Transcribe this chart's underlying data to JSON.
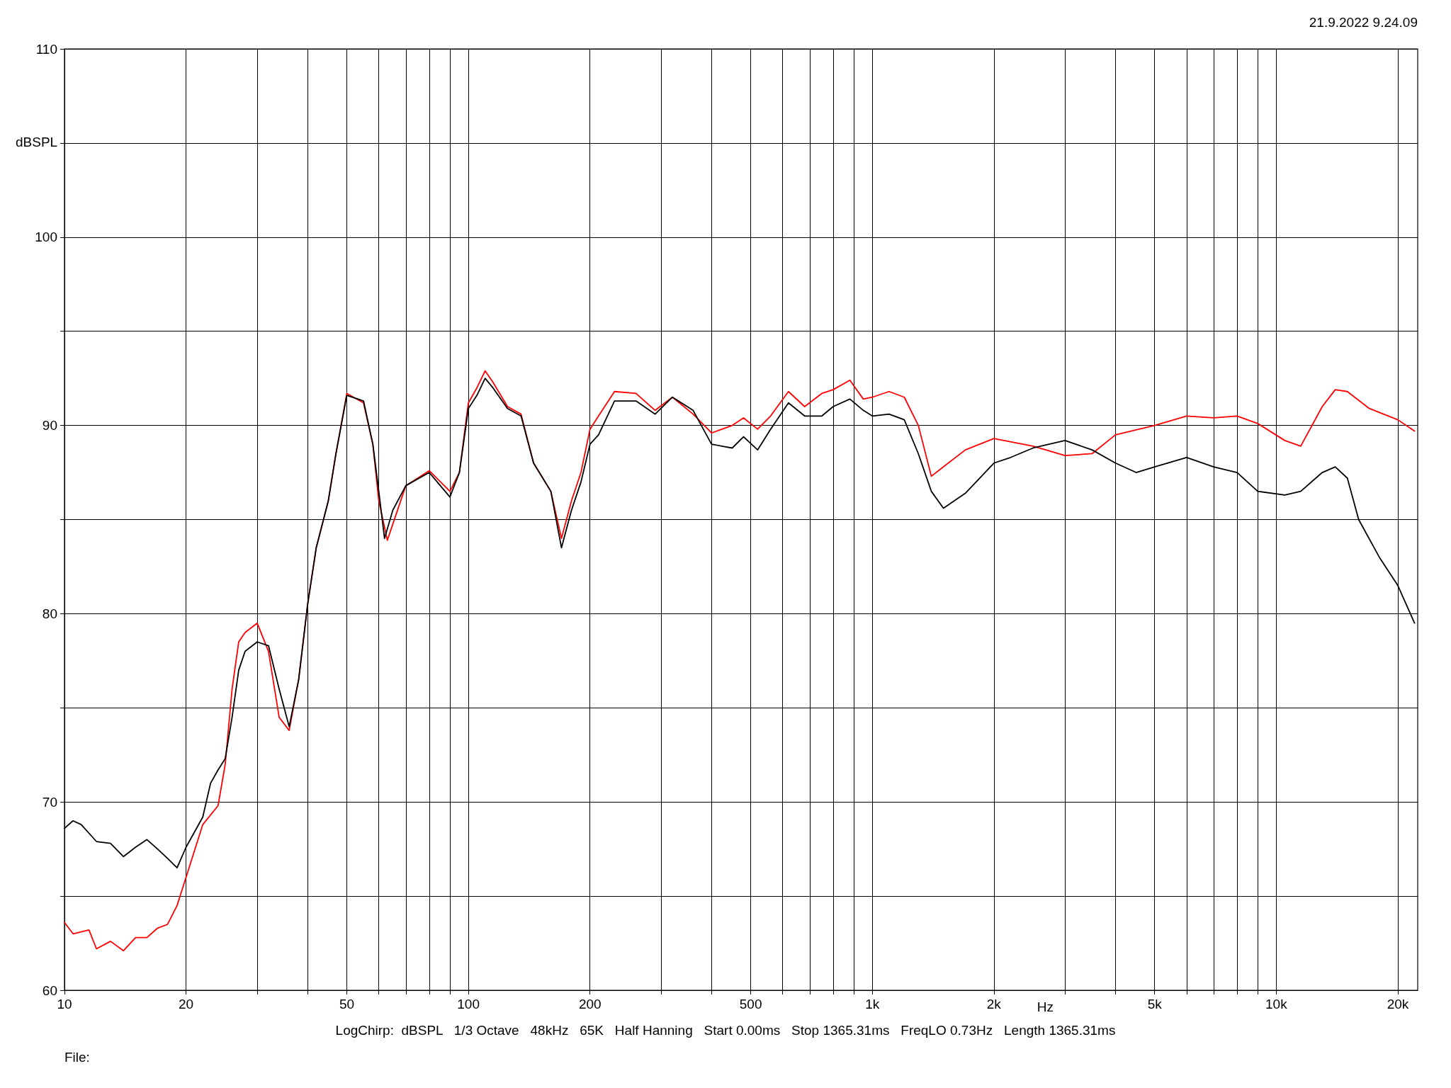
{
  "chart_data": {
    "type": "line",
    "xlabel": "Hz",
    "ylabel": "dBSPL",
    "annotations": [
      "21.9.2022 9.24.09",
      "LogChirp:  dBSPL   1/3 Octave   48kHz   65K   Half Hanning   Start 0.00ms   Stop 1365.31ms   FreqLO 0.73Hz   Length 1365.31ms",
      "File:"
    ],
    "log": "x",
    "grid": true,
    "marker": "none",
    "line_style": "solid",
    "xlim": [
      10,
      22400
    ],
    "xticks": [
      10,
      20,
      {
        "value": 30,
        "label": null
      },
      {
        "value": 40,
        "label": null
      },
      50,
      {
        "value": 60,
        "label": null
      },
      {
        "value": 70,
        "label": null
      },
      {
        "value": 80,
        "label": null
      },
      {
        "value": 90,
        "label": null
      },
      100,
      200,
      {
        "value": 300,
        "label": null
      },
      {
        "value": 400,
        "label": null
      },
      500,
      {
        "value": 600,
        "label": null
      },
      {
        "value": 700,
        "label": null
      },
      {
        "value": 800,
        "label": null
      },
      {
        "value": 900,
        "label": null
      },
      {
        "value": 1000,
        "label": "1k"
      },
      {
        "value": 2000,
        "label": "2k"
      },
      {
        "value": 3000,
        "label": null
      },
      {
        "value": 4000,
        "label": null
      },
      {
        "value": 5000,
        "label": "5k"
      },
      {
        "value": 6000,
        "label": null
      },
      {
        "value": 7000,
        "label": null
      },
      {
        "value": 8000,
        "label": null
      },
      {
        "value": 9000,
        "label": null
      },
      {
        "value": 10000,
        "label": "10k"
      },
      {
        "value": 20000,
        "label": "20k"
      }
    ],
    "ylim": [
      60,
      110
    ],
    "yticks": [
      60,
      {
        "value": 65,
        "label": null
      },
      70,
      {
        "value": 75,
        "label": null
      },
      80,
      {
        "value": 85,
        "label": null
      },
      90,
      {
        "value": 95,
        "label": null
      },
      100,
      {
        "value": 105,
        "label": null
      },
      110
    ],
    "series": [
      {
        "color": "#ff0000",
        "x": [
          10,
          10.5,
          11.5,
          12,
          13,
          14,
          15,
          16,
          17,
          18,
          19,
          20,
          22,
          24,
          25,
          26,
          27,
          28,
          30,
          32,
          34,
          36,
          38,
          40,
          42,
          45,
          47,
          50,
          55,
          58,
          60,
          63,
          70,
          80,
          90,
          95,
          100,
          105,
          110,
          115,
          125,
          135,
          145,
          160,
          170,
          180,
          190,
          200,
          210,
          230,
          260,
          290,
          320,
          360,
          400,
          450,
          480,
          520,
          560,
          620,
          680,
          750,
          800,
          880,
          950,
          1000,
          1100,
          1200,
          1300,
          1400,
          1500,
          1700,
          2000,
          2500,
          3000,
          3500,
          4000,
          5000,
          6000,
          7000,
          8000,
          9000,
          10500,
          11500,
          13000,
          14000,
          15000,
          17000,
          20000,
          22000
        ],
        "values": [
          63.6,
          63.0,
          63.2,
          62.2,
          62.6,
          62.1,
          62.8,
          62.8,
          63.3,
          63.5,
          64.5,
          66.0,
          68.8,
          69.8,
          72.0,
          76.0,
          78.5,
          79.0,
          79.5,
          78.0,
          74.5,
          73.8,
          76.5,
          80.5,
          83.5,
          86.0,
          88.5,
          91.7,
          91.2,
          89.0,
          86.0,
          83.9,
          86.8,
          87.6,
          86.5,
          87.5,
          91.2,
          92.0,
          92.9,
          92.3,
          91.0,
          90.6,
          88.0,
          86.5,
          84.0,
          86.0,
          87.5,
          89.8,
          90.5,
          91.8,
          91.7,
          90.8,
          91.5,
          90.6,
          89.6,
          90.0,
          90.4,
          89.8,
          90.5,
          91.8,
          91.0,
          91.7,
          91.9,
          92.4,
          91.4,
          91.5,
          91.8,
          91.5,
          90.0,
          87.3,
          87.8,
          88.7,
          89.3,
          88.9,
          88.4,
          88.5,
          89.5,
          90.0,
          90.5,
          90.4,
          90.5,
          90.1,
          89.2,
          88.9,
          91.0,
          91.9,
          91.8,
          90.9,
          90.3,
          89.7
        ]
      },
      {
        "color": "#000000",
        "x": [
          10,
          10.5,
          11,
          12,
          13,
          14,
          15,
          16,
          17,
          18,
          19,
          20,
          22,
          23,
          24,
          25,
          26,
          27,
          28,
          30,
          32,
          34,
          36,
          38,
          40,
          42,
          45,
          47,
          50,
          55,
          58,
          60,
          62,
          65,
          70,
          80,
          90,
          95,
          100,
          105,
          110,
          115,
          125,
          135,
          145,
          160,
          170,
          180,
          190,
          200,
          210,
          230,
          260,
          290,
          320,
          360,
          400,
          450,
          480,
          520,
          560,
          620,
          680,
          750,
          800,
          880,
          950,
          1000,
          1100,
          1200,
          1300,
          1400,
          1500,
          1700,
          2000,
          2200,
          2500,
          3000,
          3500,
          4000,
          4500,
          5000,
          6000,
          7000,
          8000,
          9000,
          10500,
          11500,
          13000,
          14000,
          15000,
          16000,
          18000,
          20000,
          22000
        ],
        "values": [
          68.6,
          69.0,
          68.8,
          67.9,
          67.8,
          67.1,
          67.6,
          68.0,
          67.5,
          67.0,
          66.5,
          67.6,
          69.2,
          71.0,
          71.7,
          72.3,
          74.5,
          77.0,
          78.0,
          78.5,
          78.3,
          76.0,
          74.0,
          76.5,
          80.5,
          83.5,
          86.0,
          88.5,
          91.6,
          91.3,
          89.0,
          86.5,
          84.0,
          85.5,
          86.8,
          87.5,
          86.2,
          87.5,
          90.9,
          91.6,
          92.5,
          92.0,
          90.9,
          90.5,
          88.0,
          86.5,
          83.5,
          85.5,
          87.0,
          89.0,
          89.5,
          91.3,
          91.3,
          90.6,
          91.5,
          90.8,
          89.0,
          88.8,
          89.4,
          88.7,
          89.8,
          91.2,
          90.5,
          90.5,
          91.0,
          91.4,
          90.8,
          90.5,
          90.6,
          90.3,
          88.5,
          86.5,
          85.6,
          86.4,
          88.0,
          88.3,
          88.8,
          89.2,
          88.7,
          88.0,
          87.5,
          87.8,
          88.3,
          87.8,
          87.5,
          86.5,
          86.3,
          86.5,
          87.5,
          87.8,
          87.2,
          85.0,
          83.0,
          81.5,
          79.5
        ]
      }
    ]
  }
}
